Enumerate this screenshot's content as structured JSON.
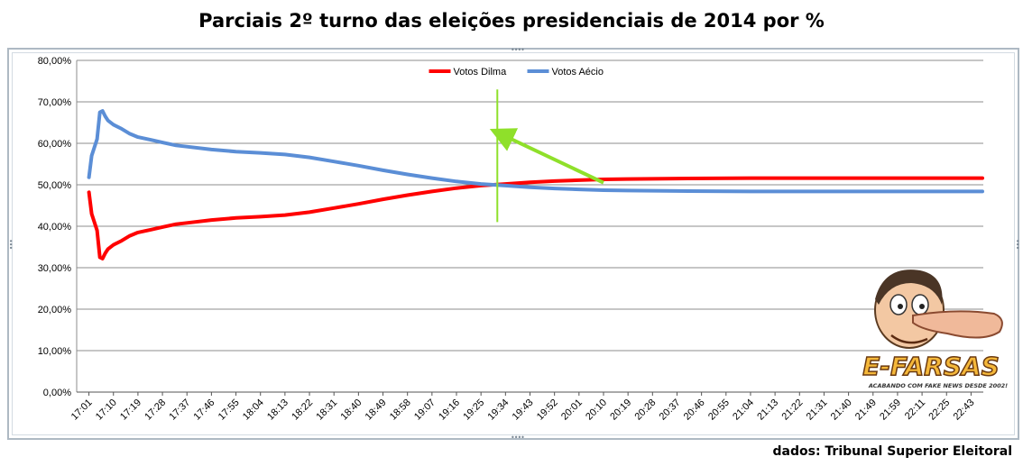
{
  "title": "Parciais 2º turno das eleições presidenciais de 2014 por %",
  "source": "dados: Tribunal Superior Eleitoral",
  "logo": {
    "name": "E-FARSAS",
    "tagline": "ACABANDO COM FAKE NEWS DESDE 2002!"
  },
  "colors": {
    "dilma": "#ff0000",
    "aecio": "#5b8ed6",
    "marker": "#8fe02a",
    "grid": "#8c8c8c"
  },
  "chart_data": {
    "type": "line",
    "title": "",
    "xlabel": "",
    "ylabel": "",
    "ylim": [
      0,
      80
    ],
    "yticks": [
      "0,00%",
      "10,00%",
      "20,00%",
      "30,00%",
      "40,00%",
      "50,00%",
      "60,00%",
      "70,00%",
      "80,00%"
    ],
    "xticks": [
      "17:01",
      "17:10",
      "17:19",
      "17:28",
      "17:37",
      "17:46",
      "17:55",
      "18:04",
      "18:13",
      "18:22",
      "18:31",
      "18:40",
      "18:49",
      "18:58",
      "19:07",
      "19:16",
      "19:25",
      "19:34",
      "19:43",
      "19:52",
      "20:01",
      "20:10",
      "20:19",
      "20:28",
      "20:37",
      "20:46",
      "20:55",
      "21:04",
      "21:13",
      "21:22",
      "21:31",
      "21:40",
      "21:49",
      "21:59",
      "22:11",
      "22:25",
      "22:43"
    ],
    "grid": true,
    "legend_position": "top-center",
    "series": [
      {
        "name": "Votos Dilma",
        "points": [
          [
            "17:01",
            48.2
          ],
          [
            "17:02",
            43.0
          ],
          [
            "17:04",
            39.0
          ],
          [
            "17:05",
            32.5
          ],
          [
            "17:06",
            32.2
          ],
          [
            "17:07",
            33.5
          ],
          [
            "17:08",
            34.5
          ],
          [
            "17:10",
            35.5
          ],
          [
            "17:13",
            36.5
          ],
          [
            "17:16",
            37.7
          ],
          [
            "17:19",
            38.5
          ],
          [
            "17:24",
            39.2
          ],
          [
            "17:28",
            39.8
          ],
          [
            "17:33",
            40.5
          ],
          [
            "17:37",
            40.8
          ],
          [
            "17:46",
            41.5
          ],
          [
            "17:55",
            42.0
          ],
          [
            "18:04",
            42.3
          ],
          [
            "18:13",
            42.7
          ],
          [
            "18:22",
            43.4
          ],
          [
            "18:31",
            44.4
          ],
          [
            "18:40",
            45.4
          ],
          [
            "18:49",
            46.5
          ],
          [
            "18:58",
            47.5
          ],
          [
            "19:07",
            48.4
          ],
          [
            "19:16",
            49.2
          ],
          [
            "19:25",
            49.8
          ],
          [
            "19:34",
            50.2
          ],
          [
            "19:43",
            50.6
          ],
          [
            "19:52",
            50.9
          ],
          [
            "20:01",
            51.1
          ],
          [
            "20:10",
            51.3
          ],
          [
            "20:19",
            51.4
          ],
          [
            "20:37",
            51.5
          ],
          [
            "21:04",
            51.6
          ],
          [
            "21:40",
            51.6
          ],
          [
            "22:43",
            51.6
          ]
        ]
      },
      {
        "name": "Votos Aécio",
        "points": [
          [
            "17:01",
            51.8
          ],
          [
            "17:02",
            57.0
          ],
          [
            "17:04",
            61.0
          ],
          [
            "17:05",
            67.5
          ],
          [
            "17:06",
            67.8
          ],
          [
            "17:07",
            66.5
          ],
          [
            "17:08",
            65.5
          ],
          [
            "17:10",
            64.5
          ],
          [
            "17:13",
            63.5
          ],
          [
            "17:16",
            62.3
          ],
          [
            "17:19",
            61.5
          ],
          [
            "17:24",
            60.8
          ],
          [
            "17:28",
            60.2
          ],
          [
            "17:33",
            59.5
          ],
          [
            "17:37",
            59.2
          ],
          [
            "17:46",
            58.5
          ],
          [
            "17:55",
            58.0
          ],
          [
            "18:04",
            57.7
          ],
          [
            "18:13",
            57.3
          ],
          [
            "18:22",
            56.6
          ],
          [
            "18:31",
            55.6
          ],
          [
            "18:40",
            54.6
          ],
          [
            "18:49",
            53.5
          ],
          [
            "18:58",
            52.5
          ],
          [
            "19:07",
            51.6
          ],
          [
            "19:16",
            50.8
          ],
          [
            "19:25",
            50.2
          ],
          [
            "19:34",
            49.8
          ],
          [
            "19:43",
            49.4
          ],
          [
            "19:52",
            49.1
          ],
          [
            "20:01",
            48.9
          ],
          [
            "20:10",
            48.7
          ],
          [
            "20:19",
            48.6
          ],
          [
            "20:37",
            48.5
          ],
          [
            "21:04",
            48.4
          ],
          [
            "21:40",
            48.4
          ],
          [
            "22:43",
            48.4
          ]
        ]
      }
    ],
    "annotations": [
      {
        "type": "vertical-line",
        "x": "19:31"
      },
      {
        "type": "arrow",
        "from": [
          "20:10",
          50.5
        ],
        "to": [
          "19:31",
          62.0
        ]
      }
    ]
  }
}
